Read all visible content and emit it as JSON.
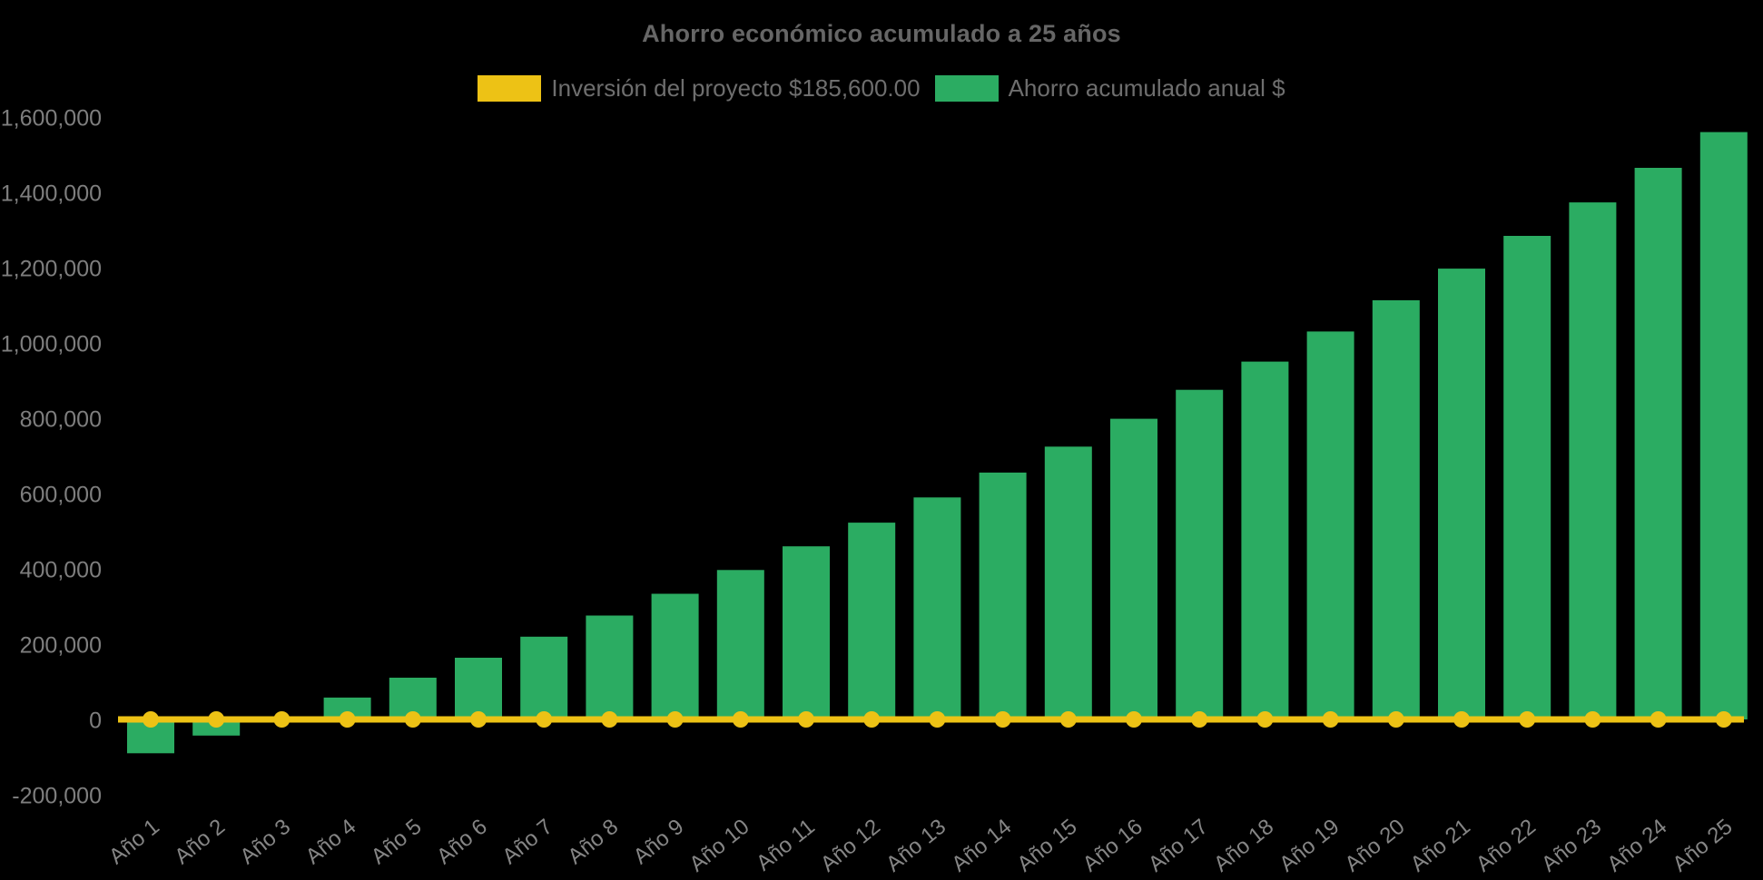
{
  "title": "Ahorro económico acumulado a 25 años",
  "legend": {
    "items": [
      {
        "label": "Inversión del proyecto $185,600.00",
        "color": "#EDC215"
      },
      {
        "label": "Ahorro acumulado anual $",
        "color": "#2BAC62"
      }
    ]
  },
  "colors": {
    "background": "#000000",
    "title_text": "#666666",
    "legend_text": "#6E6E6E",
    "axis_text": "#7E7E7E",
    "bar": "#2BAC62",
    "line": "#EDC215"
  },
  "chart_data": {
    "type": "bar",
    "title": "Ahorro económico acumulado a 25 años",
    "categories": [
      "Año 1",
      "Año 2",
      "Año 3",
      "Año 4",
      "Año 5",
      "Año 6",
      "Año 7",
      "Año 8",
      "Año 9",
      "Año 10",
      "Año 11",
      "Año 12",
      "Año 13",
      "Año 14",
      "Año 15",
      "Año 16",
      "Año 17",
      "Año 18",
      "Año 19",
      "Año 20",
      "Año 21",
      "Año 22",
      "Año 23",
      "Año 24",
      "Año 25"
    ],
    "series": [
      {
        "name": "Inversión del proyecto $185,600.00",
        "type": "line",
        "color": "#EDC215",
        "marker": "circle",
        "values": [
          0,
          0,
          0,
          0,
          0,
          0,
          0,
          0,
          0,
          0,
          0,
          0,
          0,
          0,
          0,
          0,
          0,
          0,
          0,
          0,
          0,
          0,
          0,
          0,
          0
        ]
      },
      {
        "name": "Ahorro acumulado anual $",
        "type": "bar",
        "color": "#2BAC62",
        "values": [
          -90000,
          -43000,
          5000,
          58000,
          111000,
          164000,
          220000,
          276000,
          334000,
          397000,
          460000,
          523000,
          590000,
          656000,
          725000,
          799000,
          876000,
          951000,
          1031000,
          1114000,
          1198000,
          1285000,
          1374000,
          1466000,
          1561000
        ]
      }
    ],
    "xlabel": "",
    "ylabel": "",
    "ylim": [
      -200000,
      1600000
    ],
    "ytick_step": 200000,
    "ytick_labels": [
      "1,600,000",
      "1,400,000",
      "1,200,000",
      "1,000,000",
      "800,000",
      "600,000",
      "400,000",
      "200,000",
      "0",
      "-200,000"
    ],
    "x_label_rotation": -39,
    "grid": false,
    "legend_position": "top"
  }
}
